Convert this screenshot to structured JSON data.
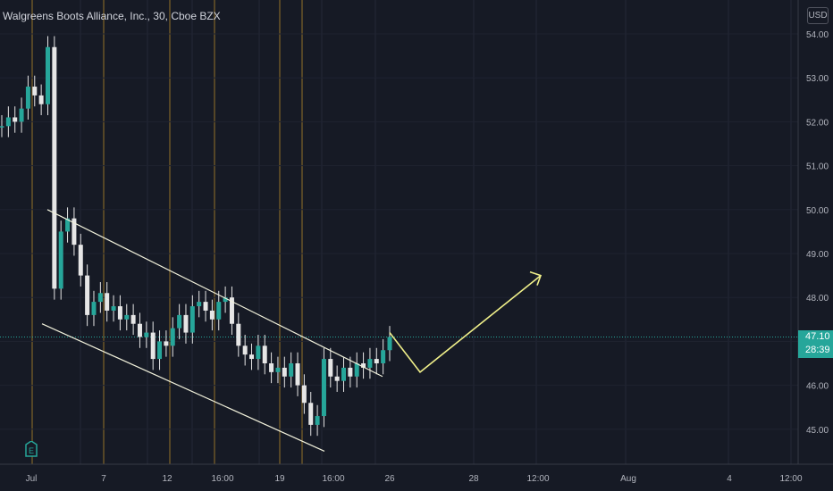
{
  "header": {
    "title": "Walgreens Boots Alliance, Inc., 30, Cboe BZX",
    "currency": "USD"
  },
  "last_price": {
    "value": "47.10",
    "countdown": "28:39"
  },
  "earnings_marker": "E",
  "colors": {
    "background": "#161a25",
    "up": "#26a69a",
    "candle": "#e6e6e6",
    "channel": "#f2f2dc",
    "projection": "#f0f08a",
    "session_line": "#8a6a2a"
  },
  "chart_data": {
    "type": "line",
    "title": "Walgreens Boots Alliance, Inc., 30, Cboe BZX",
    "xlabel": "",
    "ylabel": "",
    "ylim": [
      44.5,
      54.3
    ],
    "y_ticks": [
      "54.00",
      "53.00",
      "52.00",
      "51.00",
      "50.00",
      "49.00",
      "48.00",
      "47.00",
      "46.00",
      "45.00"
    ],
    "x_ticks": [
      "Jul",
      "7",
      "12",
      "16:00",
      "19",
      "16:00",
      "26",
      "28",
      "12:00",
      "Aug",
      "4",
      "12:00"
    ],
    "series": [
      {
        "values": [
          51.9,
          52.1,
          52.0,
          52.3,
          52.8,
          52.6,
          52.4,
          53.7,
          48.2,
          49.5,
          49.8,
          49.2,
          48.5,
          47.6,
          47.9,
          48.1,
          47.7,
          47.8,
          47.5,
          47.6,
          47.4,
          47.1,
          47.2,
          46.6,
          47.0,
          46.9,
          47.3,
          47.6,
          47.2,
          47.8,
          47.9,
          47.7,
          47.5,
          47.9,
          48.0,
          47.4,
          46.9,
          46.7,
          46.6,
          46.9,
          46.5,
          46.3,
          46.4,
          46.2,
          46.5,
          46.0,
          45.6,
          45.1,
          45.3,
          46.6,
          46.2,
          46.1,
          46.4,
          46.2,
          46.5,
          46.4,
          46.6,
          46.5,
          46.8,
          47.1
        ]
      },
      {
        "name": "upper channel",
        "values": [
          50.0,
          46.2
        ]
      },
      {
        "name": "lower channel",
        "values": [
          47.4,
          44.5
        ]
      },
      {
        "name": "projection",
        "values": [
          47.2,
          46.3,
          48.5
        ]
      }
    ]
  }
}
